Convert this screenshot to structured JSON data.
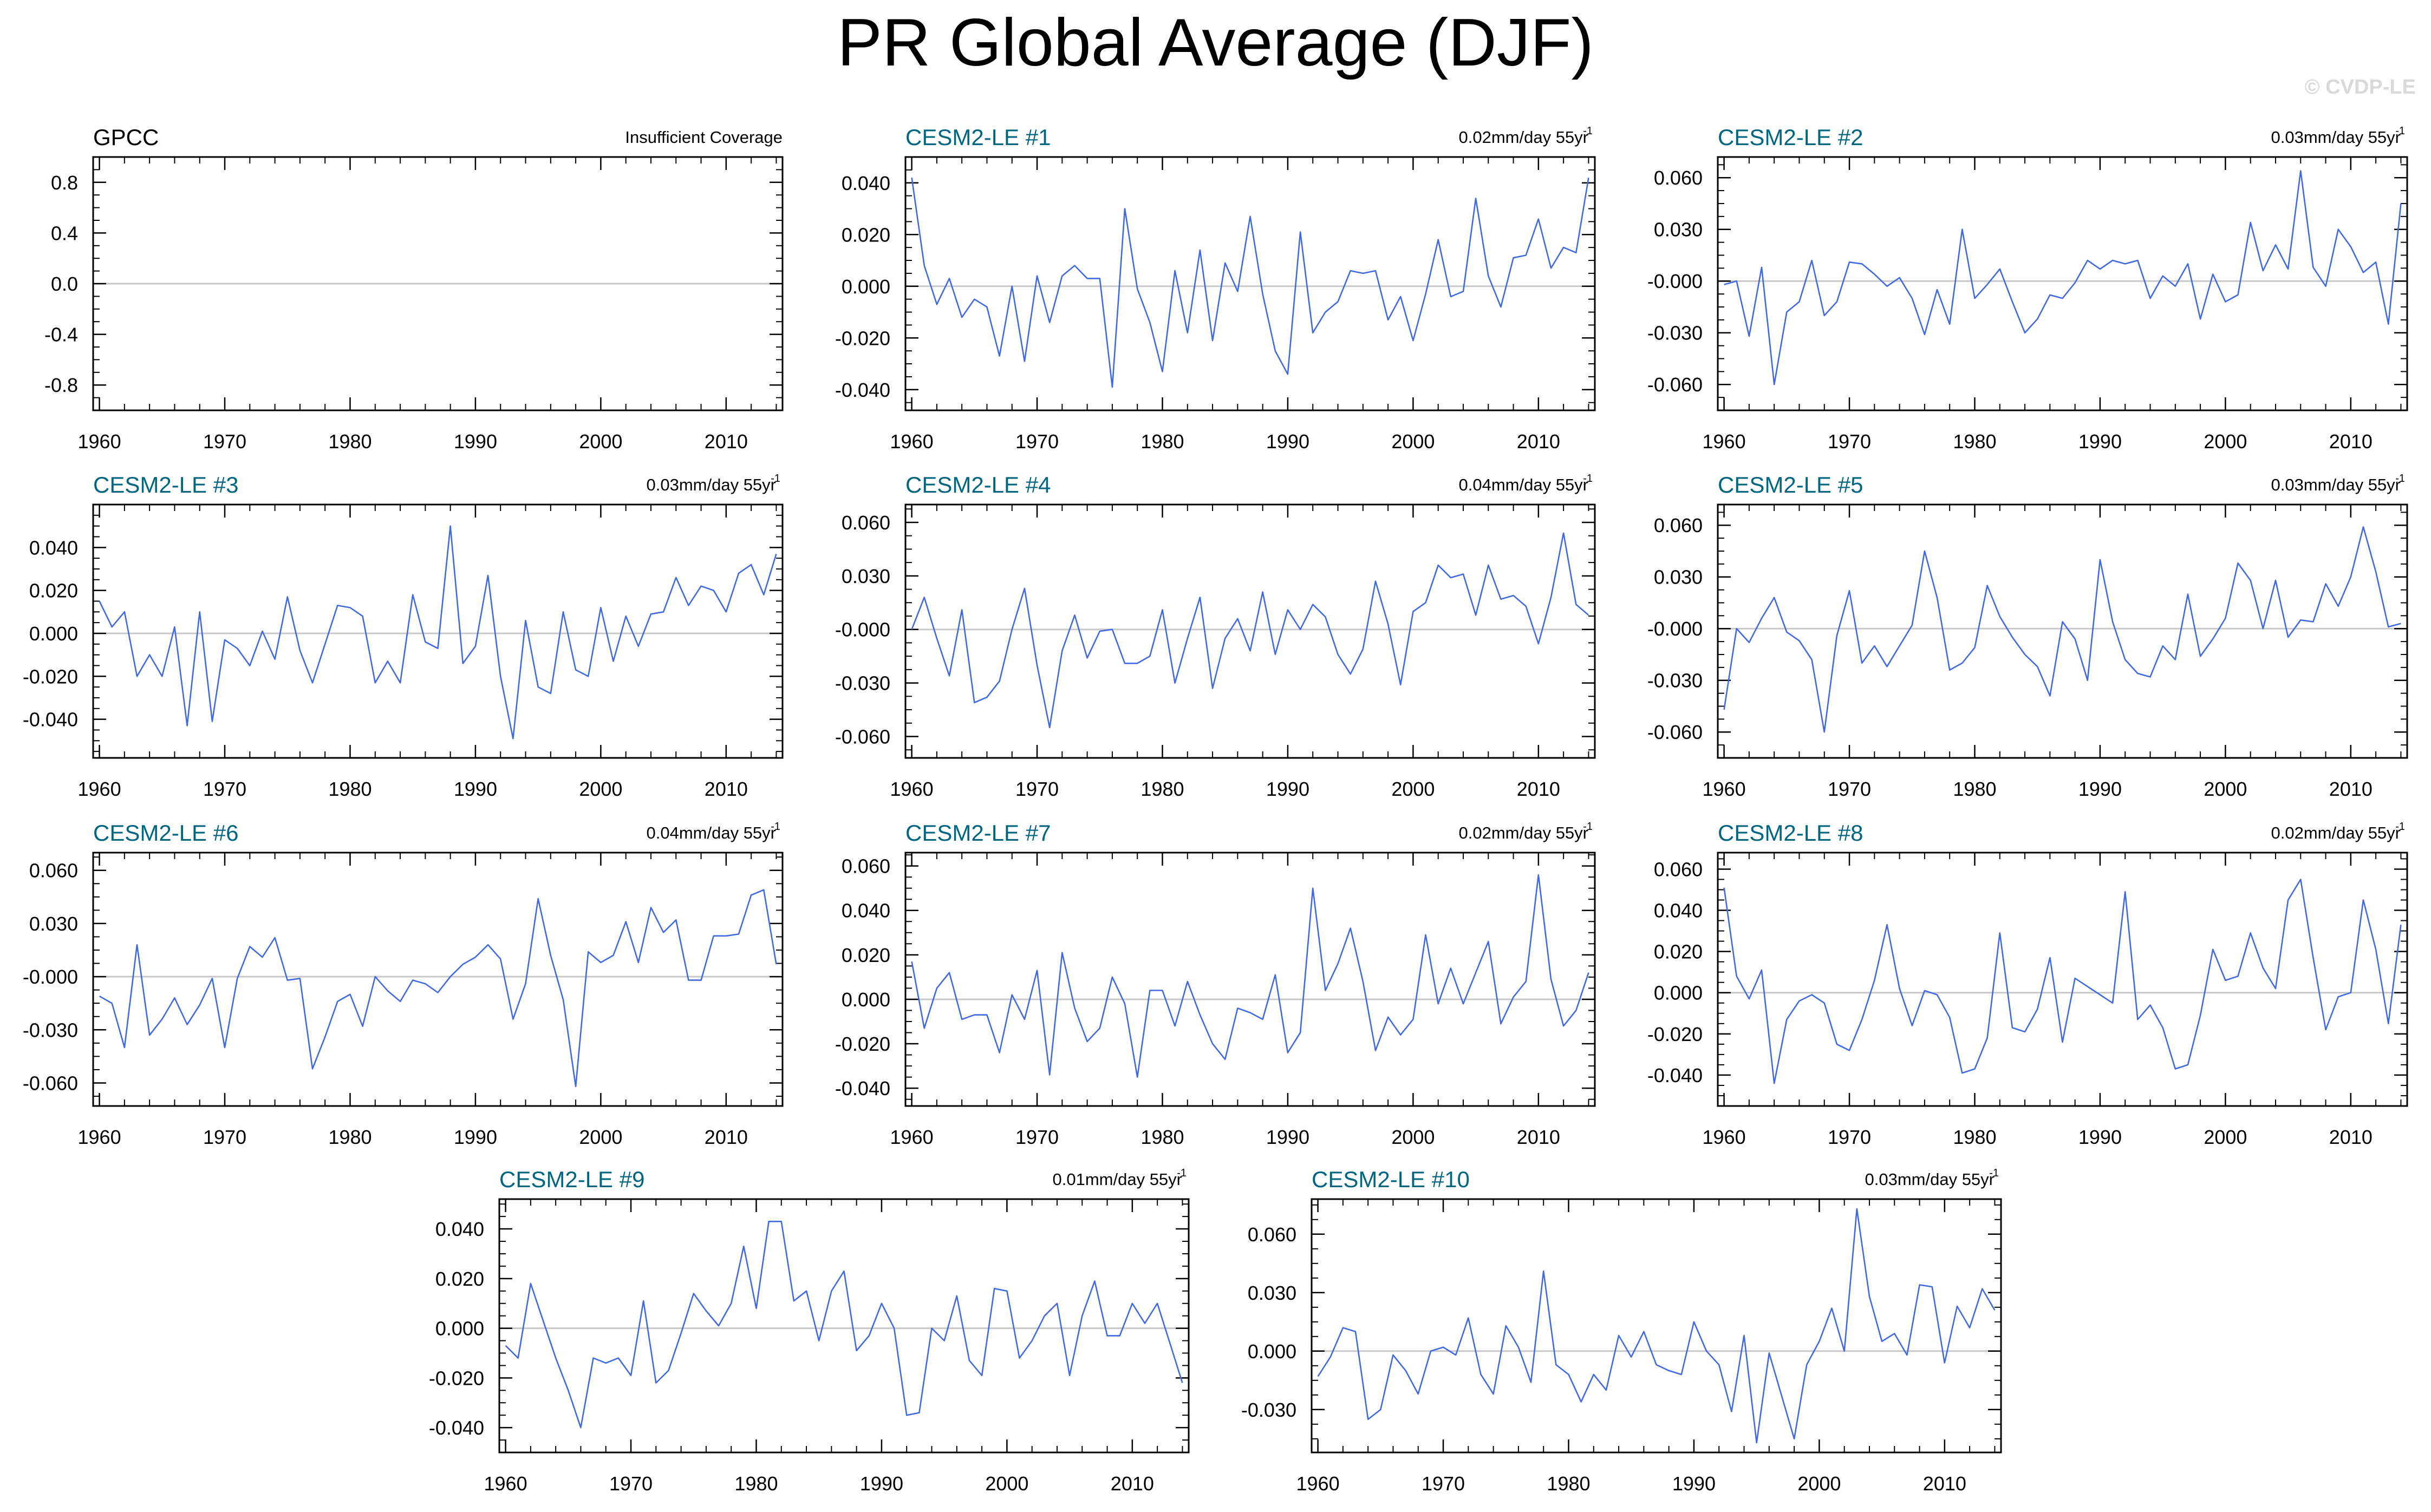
{
  "title": "PR Global Average (DJF)",
  "watermark": "© CVDP-LE",
  "colors": {
    "line": "#4169e1",
    "panel_title": "#006680",
    "obs_title": "#000000",
    "zero_line": "#c8c8c8"
  },
  "chart_data": [
    {
      "type": "line",
      "title": "GPCC",
      "trend_text": "Insufficient Coverage",
      "x": [],
      "y": [],
      "ylim": [
        -1.0,
        1.0
      ],
      "yticks": [
        -0.8,
        -0.4,
        0.0,
        0.4,
        0.8
      ],
      "ytick_labels": [
        "-0.8",
        "-0.4",
        "0.0",
        "0.4",
        "0.8"
      ],
      "xlim": [
        1959.5,
        2014.5
      ],
      "xticks": [
        1960,
        1970,
        1980,
        1990,
        2000,
        2010
      ],
      "xtick_labels": [
        "1960",
        "1970",
        "1980",
        "1990",
        "2000",
        "2010"
      ]
    },
    {
      "type": "line",
      "title": "CESM2-LE #1",
      "trend_text": "0.02mm/day 55yr",
      "x0": 1960,
      "y": [
        0.042,
        0.008,
        -0.007,
        0.003,
        -0.012,
        -0.005,
        -0.008,
        -0.027,
        0.0,
        -0.029,
        0.004,
        -0.014,
        0.004,
        0.008,
        0.003,
        0.003,
        -0.039,
        0.03,
        -0.001,
        -0.014,
        -0.033,
        0.006,
        -0.018,
        0.014,
        -0.021,
        0.009,
        -0.002,
        0.027,
        -0.003,
        -0.025,
        -0.034,
        0.021,
        -0.018,
        -0.01,
        -0.006,
        0.006,
        0.005,
        0.006,
        -0.013,
        -0.004,
        -0.021,
        -0.003,
        0.018,
        -0.004,
        -0.002,
        0.034,
        0.004,
        -0.008,
        0.011,
        0.012,
        0.026,
        0.007,
        0.015,
        0.013,
        0.042
      ],
      "ylim": [
        -0.048,
        0.05
      ],
      "yticks": [
        -0.04,
        -0.02,
        0.0,
        0.02,
        0.04
      ],
      "ytick_labels": [
        "-0.040",
        "-0.020",
        "0.000",
        "0.020",
        "0.040"
      ],
      "xlim": [
        1959.5,
        2014.5
      ],
      "xticks": [
        1960,
        1970,
        1980,
        1990,
        2000,
        2010
      ],
      "xtick_labels": [
        "1960",
        "1970",
        "1980",
        "1990",
        "2000",
        "2010"
      ]
    },
    {
      "type": "line",
      "title": "CESM2-LE #2",
      "trend_text": "0.03mm/day 55yr",
      "x0": 1960,
      "y": [
        -0.002,
        0.0,
        -0.032,
        0.008,
        -0.06,
        -0.018,
        -0.012,
        0.012,
        -0.02,
        -0.012,
        0.011,
        0.01,
        0.004,
        -0.003,
        0.002,
        -0.01,
        -0.031,
        -0.005,
        -0.025,
        0.03,
        -0.01,
        -0.002,
        0.007,
        -0.012,
        -0.03,
        -0.022,
        -0.008,
        -0.01,
        -0.001,
        0.012,
        0.007,
        0.012,
        0.01,
        0.012,
        -0.01,
        0.003,
        -0.003,
        0.01,
        -0.022,
        0.004,
        -0.012,
        -0.008,
        0.034,
        0.006,
        0.021,
        0.007,
        0.064,
        0.008,
        -0.003,
        0.03,
        0.02,
        0.005,
        0.011,
        -0.025,
        0.045
      ],
      "ylim": [
        -0.075,
        0.072
      ],
      "yticks": [
        -0.06,
        -0.03,
        0.0,
        0.03,
        0.06
      ],
      "ytick_labels": [
        "-0.060",
        "-0.030",
        "-0.000",
        "0.030",
        "0.060"
      ],
      "xlim": [
        1959.5,
        2014.5
      ],
      "xticks": [
        1960,
        1970,
        1980,
        1990,
        2000,
        2010
      ],
      "xtick_labels": [
        "1960",
        "1970",
        "1980",
        "1990",
        "2000",
        "2010"
      ]
    },
    {
      "type": "line",
      "title": "CESM2-LE #3",
      "trend_text": "0.03mm/day 55yr",
      "x0": 1960,
      "y": [
        0.015,
        0.003,
        0.01,
        -0.02,
        -0.01,
        -0.02,
        0.003,
        -0.043,
        0.01,
        -0.041,
        -0.003,
        -0.007,
        -0.015,
        0.001,
        -0.012,
        0.017,
        -0.008,
        -0.023,
        -0.005,
        0.013,
        0.012,
        0.008,
        -0.023,
        -0.013,
        -0.023,
        0.018,
        -0.004,
        -0.007,
        0.05,
        -0.014,
        -0.006,
        0.027,
        -0.02,
        -0.049,
        0.006,
        -0.025,
        -0.028,
        0.01,
        -0.017,
        -0.02,
        0.012,
        -0.013,
        0.008,
        -0.006,
        0.009,
        0.01,
        0.026,
        0.013,
        0.022,
        0.02,
        0.01,
        0.028,
        0.032,
        0.018,
        0.037
      ],
      "ylim": [
        -0.058,
        0.06
      ],
      "yticks": [
        -0.04,
        -0.02,
        0.0,
        0.02,
        0.04
      ],
      "ytick_labels": [
        "-0.040",
        "-0.020",
        "0.000",
        "0.020",
        "0.040"
      ],
      "xlim": [
        1959.5,
        2014.5
      ],
      "xticks": [
        1960,
        1970,
        1980,
        1990,
        2000,
        2010
      ],
      "xtick_labels": [
        "1960",
        "1970",
        "1980",
        "1990",
        "2000",
        "2010"
      ]
    },
    {
      "type": "line",
      "title": "CESM2-LE #4",
      "trend_text": "0.04mm/day 55yr",
      "x0": 1960,
      "y": [
        0.0,
        0.018,
        -0.005,
        -0.026,
        0.011,
        -0.041,
        -0.038,
        -0.029,
        0.0,
        0.023,
        -0.02,
        -0.055,
        -0.012,
        0.008,
        -0.016,
        -0.001,
        0.0,
        -0.019,
        -0.019,
        -0.015,
        0.011,
        -0.03,
        -0.005,
        0.018,
        -0.033,
        -0.005,
        0.006,
        -0.012,
        0.021,
        -0.014,
        0.011,
        0.0,
        0.014,
        0.007,
        -0.014,
        -0.025,
        -0.011,
        0.027,
        0.003,
        -0.031,
        0.01,
        0.015,
        0.036,
        0.029,
        0.031,
        0.008,
        0.036,
        0.017,
        0.019,
        0.013,
        -0.008,
        0.018,
        0.054,
        0.014,
        0.008
      ],
      "ylim": [
        -0.072,
        0.07
      ],
      "yticks": [
        -0.06,
        -0.03,
        0.0,
        0.03,
        0.06
      ],
      "ytick_labels": [
        "-0.060",
        "-0.030",
        "-0.000",
        "0.030",
        "0.060"
      ],
      "xlim": [
        1959.5,
        2014.5
      ],
      "xticks": [
        1960,
        1970,
        1980,
        1990,
        2000,
        2010
      ],
      "xtick_labels": [
        "1960",
        "1970",
        "1980",
        "1990",
        "2000",
        "2010"
      ]
    },
    {
      "type": "line",
      "title": "CESM2-LE #5",
      "trend_text": "0.03mm/day 55yr",
      "x0": 1960,
      "y": [
        -0.047,
        0.0,
        -0.008,
        0.006,
        0.018,
        -0.002,
        -0.007,
        -0.018,
        -0.06,
        -0.004,
        0.022,
        -0.02,
        -0.01,
        -0.022,
        -0.01,
        0.002,
        0.045,
        0.018,
        -0.024,
        -0.02,
        -0.011,
        0.025,
        0.007,
        -0.005,
        -0.015,
        -0.022,
        -0.039,
        0.004,
        -0.006,
        -0.03,
        0.04,
        0.004,
        -0.018,
        -0.026,
        -0.028,
        -0.01,
        -0.018,
        0.02,
        -0.016,
        -0.006,
        0.006,
        0.038,
        0.028,
        0.0,
        0.028,
        -0.005,
        0.005,
        0.004,
        0.026,
        0.013,
        0.03,
        0.059,
        0.033,
        0.001,
        0.003
      ],
      "ylim": [
        -0.075,
        0.072
      ],
      "yticks": [
        -0.06,
        -0.03,
        0.0,
        0.03,
        0.06
      ],
      "ytick_labels": [
        "-0.060",
        "-0.030",
        "-0.000",
        "0.030",
        "0.060"
      ],
      "xlim": [
        1959.5,
        2014.5
      ],
      "xticks": [
        1960,
        1970,
        1980,
        1990,
        2000,
        2010
      ],
      "xtick_labels": [
        "1960",
        "1970",
        "1980",
        "1990",
        "2000",
        "2010"
      ]
    },
    {
      "type": "line",
      "title": "CESM2-LE #6",
      "trend_text": "0.04mm/day 55yr",
      "x0": 1960,
      "y": [
        -0.011,
        -0.015,
        -0.04,
        0.018,
        -0.033,
        -0.024,
        -0.012,
        -0.027,
        -0.016,
        -0.001,
        -0.04,
        -0.001,
        0.017,
        0.011,
        0.022,
        -0.002,
        -0.001,
        -0.052,
        -0.034,
        -0.014,
        -0.01,
        -0.028,
        0.0,
        -0.008,
        -0.014,
        -0.002,
        -0.004,
        -0.009,
        0.0,
        0.007,
        0.011,
        0.018,
        0.01,
        -0.024,
        -0.004,
        0.044,
        0.012,
        -0.013,
        -0.062,
        0.014,
        0.008,
        0.012,
        0.031,
        0.008,
        0.039,
        0.025,
        0.032,
        -0.002,
        -0.002,
        0.023,
        0.023,
        0.024,
        0.046,
        0.049,
        0.007
      ],
      "ylim": [
        -0.073,
        0.07
      ],
      "yticks": [
        -0.06,
        -0.03,
        0.0,
        0.03,
        0.06
      ],
      "ytick_labels": [
        "-0.060",
        "-0.030",
        "-0.000",
        "0.030",
        "0.060"
      ],
      "xlim": [
        1959.5,
        2014.5
      ],
      "xticks": [
        1960,
        1970,
        1980,
        1990,
        2000,
        2010
      ],
      "xtick_labels": [
        "1960",
        "1970",
        "1980",
        "1990",
        "2000",
        "2010"
      ]
    },
    {
      "type": "line",
      "title": "CESM2-LE #7",
      "trend_text": "0.02mm/day 55yr",
      "x0": 1960,
      "y": [
        0.017,
        -0.013,
        0.005,
        0.012,
        -0.009,
        -0.007,
        -0.007,
        -0.024,
        0.002,
        -0.009,
        0.013,
        -0.034,
        0.021,
        -0.004,
        -0.019,
        -0.013,
        0.01,
        -0.002,
        -0.035,
        0.004,
        0.004,
        -0.012,
        0.008,
        -0.007,
        -0.02,
        -0.027,
        -0.004,
        -0.006,
        -0.009,
        0.011,
        -0.024,
        -0.015,
        0.05,
        0.004,
        0.016,
        0.032,
        0.008,
        -0.023,
        -0.008,
        -0.016,
        -0.009,
        0.029,
        -0.002,
        0.014,
        -0.002,
        0.012,
        0.026,
        -0.011,
        0.001,
        0.008,
        0.056,
        0.009,
        -0.012,
        -0.005,
        0.012
      ],
      "ylim": [
        -0.048,
        0.066
      ],
      "yticks": [
        -0.04,
        -0.02,
        0.0,
        0.02,
        0.04,
        0.06
      ],
      "ytick_labels": [
        "-0.040",
        "-0.020",
        "0.000",
        "0.020",
        "0.040",
        "0.060"
      ],
      "xlim": [
        1959.5,
        2014.5
      ],
      "xticks": [
        1960,
        1970,
        1980,
        1990,
        2000,
        2010
      ],
      "xtick_labels": [
        "1960",
        "1970",
        "1980",
        "1990",
        "2000",
        "2010"
      ]
    },
    {
      "type": "line",
      "title": "CESM2-LE #8",
      "trend_text": "0.02mm/day 55yr",
      "x0": 1960,
      "y": [
        0.051,
        0.008,
        -0.003,
        0.011,
        -0.044,
        -0.013,
        -0.004,
        -0.001,
        -0.005,
        -0.025,
        -0.028,
        -0.013,
        0.006,
        0.033,
        0.002,
        -0.016,
        0.001,
        -0.001,
        -0.012,
        -0.039,
        -0.037,
        -0.022,
        0.029,
        -0.017,
        -0.019,
        -0.008,
        0.017,
        -0.024,
        0.007,
        0.003,
        -0.001,
        -0.005,
        0.049,
        -0.013,
        -0.006,
        -0.017,
        -0.037,
        -0.035,
        -0.011,
        0.021,
        0.006,
        0.008,
        0.029,
        0.012,
        0.002,
        0.045,
        0.055,
        0.017,
        -0.018,
        -0.002,
        0.0,
        0.045,
        0.021,
        -0.015,
        0.033
      ],
      "ylim": [
        -0.055,
        0.068
      ],
      "yticks": [
        -0.04,
        -0.02,
        0.0,
        0.02,
        0.04,
        0.06
      ],
      "ytick_labels": [
        "-0.040",
        "-0.020",
        "0.000",
        "0.020",
        "0.040",
        "0.060"
      ],
      "xlim": [
        1959.5,
        2014.5
      ],
      "xticks": [
        1960,
        1970,
        1980,
        1990,
        2000,
        2010
      ],
      "xtick_labels": [
        "1960",
        "1970",
        "1980",
        "1990",
        "2000",
        "2010"
      ]
    },
    {
      "type": "line",
      "title": "CESM2-LE #9",
      "trend_text": "0.01mm/day 55yr",
      "x0": 1960,
      "y": [
        -0.007,
        -0.012,
        0.018,
        0.003,
        -0.012,
        -0.025,
        -0.04,
        -0.012,
        -0.014,
        -0.012,
        -0.019,
        0.011,
        -0.022,
        -0.017,
        -0.002,
        0.014,
        0.007,
        0.001,
        0.01,
        0.033,
        0.008,
        0.043,
        0.043,
        0.011,
        0.015,
        -0.005,
        0.015,
        0.023,
        -0.009,
        -0.003,
        0.01,
        0.0,
        -0.035,
        -0.034,
        0.0,
        -0.005,
        0.013,
        -0.013,
        -0.019,
        0.016,
        0.015,
        -0.012,
        -0.005,
        0.005,
        0.01,
        -0.019,
        0.005,
        0.019,
        -0.003,
        -0.003,
        0.01,
        0.002,
        0.01,
        -0.006,
        -0.022
      ],
      "ylim": [
        -0.05,
        0.052
      ],
      "yticks": [
        -0.04,
        -0.02,
        0.0,
        0.02,
        0.04
      ],
      "ytick_labels": [
        "-0.040",
        "-0.020",
        "0.000",
        "0.020",
        "0.040"
      ],
      "xlim": [
        1959.5,
        2014.5
      ],
      "xticks": [
        1960,
        1970,
        1980,
        1990,
        2000,
        2010
      ],
      "xtick_labels": [
        "1960",
        "1970",
        "1980",
        "1990",
        "2000",
        "2010"
      ]
    },
    {
      "type": "line",
      "title": "CESM2-LE #10",
      "trend_text": "0.03mm/day 55yr",
      "x0": 1960,
      "y": [
        -0.013,
        -0.003,
        0.012,
        0.01,
        -0.035,
        -0.03,
        -0.002,
        -0.01,
        -0.022,
        0.0,
        0.002,
        -0.002,
        0.017,
        -0.012,
        -0.022,
        0.013,
        0.002,
        -0.016,
        0.041,
        -0.007,
        -0.012,
        -0.026,
        -0.012,
        -0.02,
        0.008,
        -0.003,
        0.01,
        -0.007,
        -0.01,
        -0.012,
        0.015,
        0.0,
        -0.007,
        -0.031,
        0.008,
        -0.047,
        -0.001,
        -0.023,
        -0.045,
        -0.007,
        0.005,
        0.022,
        0.0,
        0.073,
        0.028,
        0.005,
        0.009,
        -0.002,
        0.034,
        0.033,
        -0.006,
        0.023,
        0.012,
        0.032,
        0.021
      ],
      "ylim": [
        -0.052,
        0.078
      ],
      "yticks": [
        -0.03,
        0.0,
        0.03,
        0.06
      ],
      "ytick_labels": [
        "-0.030",
        "0.000",
        "0.030",
        "0.060"
      ],
      "xlim": [
        1959.5,
        2014.5
      ],
      "xticks": [
        1960,
        1970,
        1980,
        1990,
        2000,
        2010
      ],
      "xtick_labels": [
        "1960",
        "1970",
        "1980",
        "1990",
        "2000",
        "2010"
      ]
    }
  ]
}
